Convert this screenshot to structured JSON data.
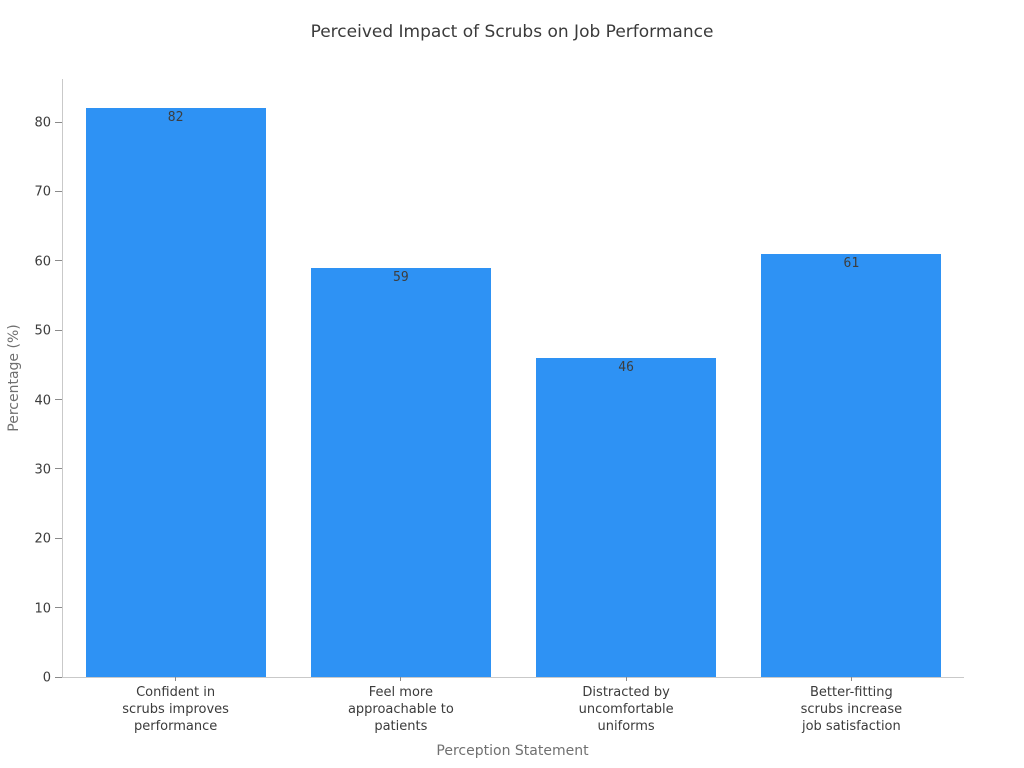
{
  "chart_data": {
    "type": "bar",
    "title": "Perceived Impact of Scrubs on Job Performance",
    "xlabel": "Perception Statement",
    "ylabel": "Percentage (%)",
    "categories": [
      "Confident in\nscrubs improves\nperformance",
      "Feel more\napproachable to\npatients",
      "Distracted by\nuncomfortable\nuniforms",
      "Better-fitting\nscrubs increase\njob satisfaction"
    ],
    "values": [
      82,
      59,
      46,
      61
    ],
    "bar_labels": [
      "82",
      "59",
      "46",
      "61"
    ],
    "yticks": [
      0,
      10,
      20,
      30,
      40,
      50,
      60,
      70,
      80
    ],
    "ylim": [
      0,
      86.2
    ],
    "bar_width_fraction": 0.8,
    "grid": false,
    "legend": false,
    "colors": {
      "bar": "#2E92F4",
      "spine": "#C9C9C9",
      "tick": "#8A8A8A",
      "tick_label": "#3B3B3B",
      "axis_label": "#707070",
      "title": "#3A3A3A",
      "value_label": "#3D3D3D",
      "background": "#FFFFFF"
    }
  }
}
